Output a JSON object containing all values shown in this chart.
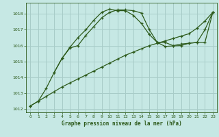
{
  "title": "Graphe pression niveau de la mer (hPa)",
  "background_color": "#c6e8e4",
  "grid_color": "#a8ccc8",
  "line_color": "#2d5a1b",
  "xlim": [
    -0.5,
    23.5
  ],
  "ylim": [
    1011.8,
    1018.7
  ],
  "yticks": [
    1012,
    1013,
    1014,
    1015,
    1016,
    1017,
    1018
  ],
  "xticks": [
    0,
    1,
    2,
    3,
    4,
    5,
    6,
    7,
    8,
    9,
    10,
    11,
    12,
    13,
    14,
    15,
    16,
    17,
    18,
    19,
    20,
    21,
    22,
    23
  ],
  "series": [
    {
      "x": [
        0,
        1,
        2,
        3,
        4,
        5,
        6,
        7,
        8,
        9,
        10,
        11,
        12,
        13,
        14,
        15,
        16,
        17,
        18,
        19,
        20,
        21,
        22,
        23
      ],
      "y": [
        1012.2,
        1012.5,
        1012.8,
        1013.1,
        1013.4,
        1013.65,
        1013.9,
        1014.15,
        1014.4,
        1014.65,
        1014.9,
        1015.15,
        1015.4,
        1015.6,
        1015.8,
        1016.0,
        1016.15,
        1016.3,
        1016.45,
        1016.6,
        1016.75,
        1017.1,
        1017.55,
        1018.1
      ],
      "style": "-",
      "marker": "+"
    },
    {
      "x": [
        0,
        1,
        2,
        3,
        4,
        5,
        6,
        7,
        8,
        9,
        10,
        11,
        12,
        13,
        14,
        15,
        16,
        17,
        18,
        19,
        20,
        21,
        22,
        23
      ],
      "y": [
        1012.2,
        1012.5,
        1013.3,
        1014.3,
        1015.2,
        1015.9,
        1016.5,
        1017.0,
        1017.6,
        1018.1,
        1018.3,
        1018.2,
        1018.2,
        1017.9,
        1017.4,
        1016.7,
        1016.2,
        1016.2,
        1016.0,
        1016.1,
        1016.15,
        1016.2,
        1017.0,
        1018.1
      ],
      "style": "-",
      "marker": "+"
    },
    {
      "x": [
        3,
        4,
        5,
        6,
        7,
        8,
        9,
        10,
        11,
        12,
        13,
        14,
        15,
        16,
        17,
        18,
        19,
        20,
        21,
        22,
        23
      ],
      "y": [
        1014.3,
        1015.2,
        1015.85,
        1016.0,
        1016.65,
        1017.2,
        1017.75,
        1018.1,
        1018.25,
        1018.25,
        1018.2,
        1018.05,
        1017.0,
        1016.2,
        1015.95,
        1015.98,
        1016.0,
        1016.15,
        1016.2,
        1016.2,
        1018.1
      ],
      "style": "-",
      "marker": "+"
    }
  ]
}
